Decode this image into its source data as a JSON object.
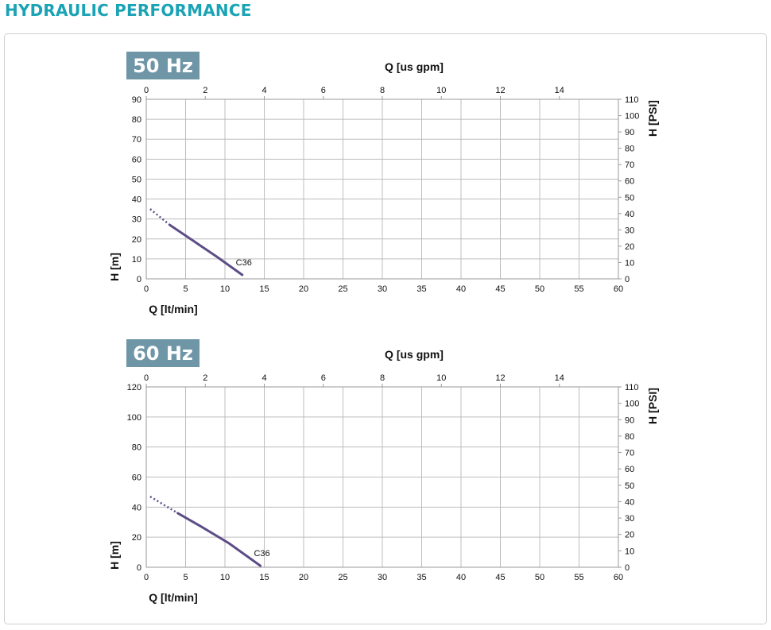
{
  "section_title": "HYDRAULIC PERFORMANCE",
  "colors": {
    "title": "#1aa3b5",
    "badge": "#6f96a7",
    "curve": "#5d4d86",
    "grid": "#bdbdbd"
  },
  "chart_data": [
    {
      "type": "line",
      "badge": "50 Hz",
      "title": "",
      "x_top_label": "Q [us gpm]",
      "x_top_ticks": [
        "0",
        "2",
        "4",
        "6",
        "8",
        "10",
        "12",
        "14"
      ],
      "x_top_lim": [
        0,
        16
      ],
      "xlabel": "Q [lt/min]",
      "x_ticks": [
        "0",
        "5",
        "10",
        "15",
        "20",
        "25",
        "30",
        "35",
        "40",
        "45",
        "50",
        "55",
        "60"
      ],
      "xlim": [
        0,
        60
      ],
      "ylabel": "H [m]",
      "y_ticks": [
        "0",
        "10",
        "20",
        "30",
        "40",
        "50",
        "60",
        "70",
        "80",
        "90"
      ],
      "ylim": [
        0,
        90
      ],
      "y_right_label": "H [PSI]",
      "y_right_ticks": [
        "0",
        "10",
        "20",
        "30",
        "40",
        "50",
        "60",
        "70",
        "80",
        "90",
        "100",
        "110"
      ],
      "y_right_lim": [
        0,
        110
      ],
      "grid": true,
      "series": [
        {
          "name": "C36",
          "dotted": {
            "x": [
              0.5,
              3.0
            ],
            "y": [
              35,
              27
            ]
          },
          "x": [
            3.0,
            6,
            9,
            12.2
          ],
          "y": [
            27,
            19,
            11,
            2
          ]
        }
      ]
    },
    {
      "type": "line",
      "badge": "60 Hz",
      "title": "",
      "x_top_label": "Q [us gpm]",
      "x_top_ticks": [
        "0",
        "2",
        "4",
        "6",
        "8",
        "10",
        "12",
        "14"
      ],
      "x_top_lim": [
        0,
        16
      ],
      "xlabel": "Q [lt/min]",
      "x_ticks": [
        "0",
        "5",
        "10",
        "15",
        "20",
        "25",
        "30",
        "35",
        "40",
        "45",
        "50",
        "55",
        "60"
      ],
      "xlim": [
        0,
        60
      ],
      "ylabel": "H [m]",
      "y_ticks": [
        "0",
        "20",
        "40",
        "60",
        "80",
        "100",
        "120"
      ],
      "ylim": [
        0,
        120
      ],
      "y_right_label": "H [PSI]",
      "y_right_ticks": [
        "0",
        "10",
        "20",
        "30",
        "40",
        "50",
        "60",
        "70",
        "80",
        "90",
        "100",
        "110"
      ],
      "y_right_lim": [
        0,
        110
      ],
      "grid": true,
      "series": [
        {
          "name": "C36",
          "dotted": {
            "x": [
              0.5,
              4.0
            ],
            "y": [
              47,
              36
            ]
          },
          "x": [
            4.0,
            7,
            10.5,
            14.5
          ],
          "y": [
            36,
            27,
            16,
            1
          ]
        }
      ]
    }
  ]
}
